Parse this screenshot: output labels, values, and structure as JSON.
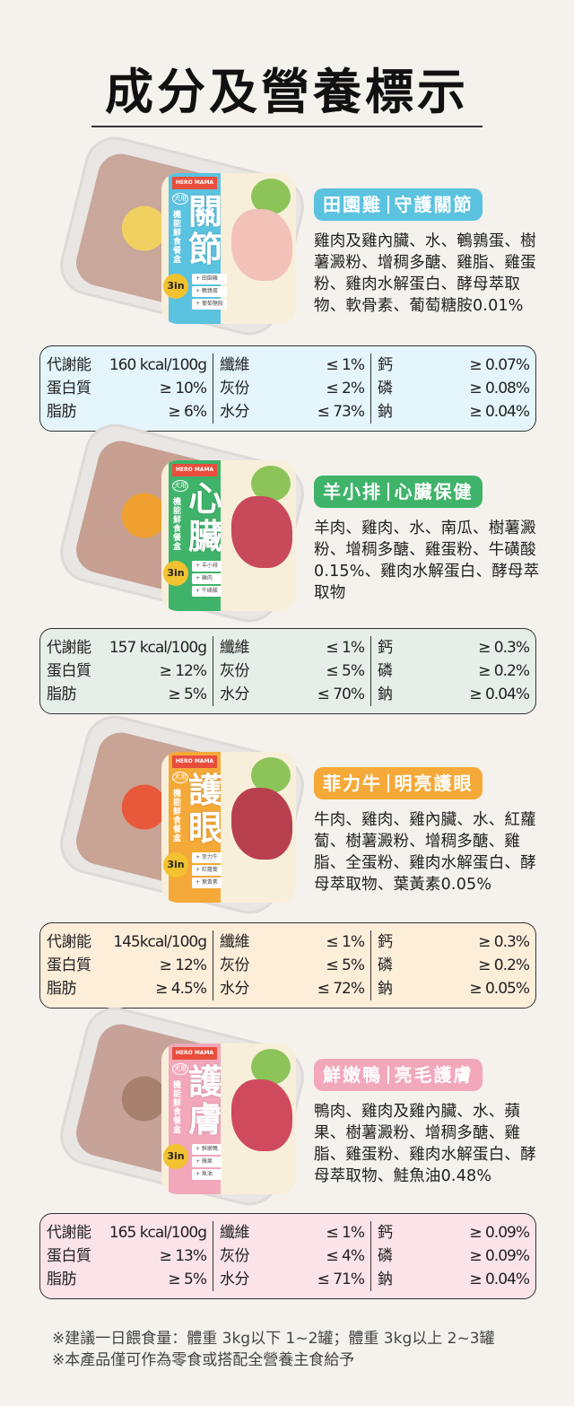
{
  "title": "成分及營養標示",
  "colors": {
    "background": "#f5f1ec"
  },
  "products": [
    {
      "flavor": "田園雞",
      "benefit": "守護關節",
      "color": "#5bc2e0",
      "table_bg": "#e4f5fb",
      "pate": "#c9a79a",
      "topping": "#f0d060",
      "package": {
        "brand": "HERO MAMA",
        "dog": "犬用",
        "line": "機能鮮食餐盒",
        "name": "關節",
        "badge": "3in",
        "additions": [
          "+ 田園雞",
          "+ 鵪鶉蛋",
          "+ 葡萄糖胺"
        ],
        "meat": "#f2c2b8"
      },
      "ingredients": "雞肉及雞內臟、水、鵪鶉蛋、樹薯澱粉、增稠多醣、雞脂、雞蛋粉、雞肉水解蛋白、酵母萃取物、軟骨素、葡萄糖胺0.01%",
      "nutrition": [
        [
          [
            "代謝能",
            "160 kcal/100g"
          ],
          [
            "蛋白質",
            "≥ 10%"
          ],
          [
            "脂肪",
            "≥ 6%"
          ]
        ],
        [
          [
            "纖維",
            "≤ 1%"
          ],
          [
            "灰份",
            "≤ 2%"
          ],
          [
            "水分",
            "≤ 73%"
          ]
        ],
        [
          [
            "鈣",
            "≥ 0.07%"
          ],
          [
            "磷",
            "≥ 0.08%"
          ],
          [
            "鈉",
            "≥ 0.04%"
          ]
        ]
      ]
    },
    {
      "flavor": "羊小排",
      "benefit": "心臟保健",
      "color": "#3fb36a",
      "table_bg": "#e5efe8",
      "pate": "#c7a092",
      "topping": "#f0a030",
      "package": {
        "brand": "HERO MAMA",
        "dog": "犬用",
        "line": "機能鮮食餐盒",
        "name": "心臟",
        "badge": "3in",
        "additions": [
          "+ 羊小排",
          "+ 雞肉",
          "+ 牛磺酸"
        ],
        "meat": "#c84a5a"
      },
      "ingredients": "羊肉、雞肉、水、南瓜、樹薯澱粉、增稠多醣、雞蛋粉、牛磺酸0.15%、雞肉水解蛋白、酵母萃取物",
      "nutrition": [
        [
          [
            "代謝能",
            "157 kcal/100g"
          ],
          [
            "蛋白質",
            "≥ 12%"
          ],
          [
            "脂肪",
            "≥ 5%"
          ]
        ],
        [
          [
            "纖維",
            "≤ 1%"
          ],
          [
            "灰份",
            "≤ 5%"
          ],
          [
            "水分",
            "≤ 70%"
          ]
        ],
        [
          [
            "鈣",
            "≥ 0.3%"
          ],
          [
            "磷",
            "≥ 0.2%"
          ],
          [
            "鈉",
            "≥ 0.04%"
          ]
        ]
      ]
    },
    {
      "flavor": "菲力牛",
      "benefit": "明亮護眼",
      "color": "#f5a938",
      "table_bg": "#fdeeda",
      "pate": "#c9a394",
      "topping": "#e8583a",
      "package": {
        "brand": "HERO MAMA",
        "dog": "犬用",
        "line": "機能鮮食餐盒",
        "name": "護眼",
        "badge": "3in",
        "additions": [
          "+ 菲力牛",
          "+ 紅蘿蔔",
          "+ 葉黃素"
        ],
        "meat": "#b8404e"
      },
      "ingredients": "牛肉、雞肉、雞內臟、水、紅蘿蔔、樹薯澱粉、增稠多醣、雞脂、全蛋粉、雞肉水解蛋白、酵母萃取物、葉黃素0.05%",
      "nutrition": [
        [
          [
            "代謝能",
            "145kcal/100g"
          ],
          [
            "蛋白質",
            "≥ 12%"
          ],
          [
            "脂肪",
            "≥ 4.5%"
          ]
        ],
        [
          [
            "纖維",
            "≤ 1%"
          ],
          [
            "灰份",
            "≤ 5%"
          ],
          [
            "水分",
            "≤ 72%"
          ]
        ],
        [
          [
            "鈣",
            "≥ 0.3%"
          ],
          [
            "磷",
            "≥ 0.2%"
          ],
          [
            "鈉",
            "≥ 0.05%"
          ]
        ]
      ]
    },
    {
      "flavor": "鮮嫩鴨",
      "benefit": "亮毛護膚",
      "color": "#f2a7bb",
      "table_bg": "#fbe3ea",
      "pate": "#c6a298",
      "topping": "#a8806e",
      "package": {
        "brand": "HERO MAMA",
        "dog": "犬用",
        "line": "機能鮮食餐盒",
        "name": "護膚",
        "badge": "3in",
        "additions": [
          "+ 鮮嫩鴨",
          "+ 蘋果",
          "+ 魚油"
        ],
        "meat": "#d04a5e"
      },
      "ingredients": "鴨肉、雞肉及雞內臟、水、蘋果、樹薯澱粉、增稠多醣、雞脂、雞蛋粉、雞肉水解蛋白、酵母萃取物、鮭魚油0.48%",
      "nutrition": [
        [
          [
            "代謝能",
            "165 kcal/100g"
          ],
          [
            "蛋白質",
            "≥ 13%"
          ],
          [
            "脂肪",
            "≥ 5%"
          ]
        ],
        [
          [
            "纖維",
            "≤ 1%"
          ],
          [
            "灰份",
            "≤ 4%"
          ],
          [
            "水分",
            "≤ 71%"
          ]
        ],
        [
          [
            "鈣",
            "≥ 0.09%"
          ],
          [
            "磷",
            "≥ 0.09%"
          ],
          [
            "鈉",
            "≥ 0.04%"
          ]
        ]
      ]
    }
  ],
  "notes": [
    "※建議一日餵食量：體重 3kg以下 1~2罐；體重 3kg以上 2~3罐",
    "※本產品僅可作為零食或搭配全營養主食給予"
  ]
}
